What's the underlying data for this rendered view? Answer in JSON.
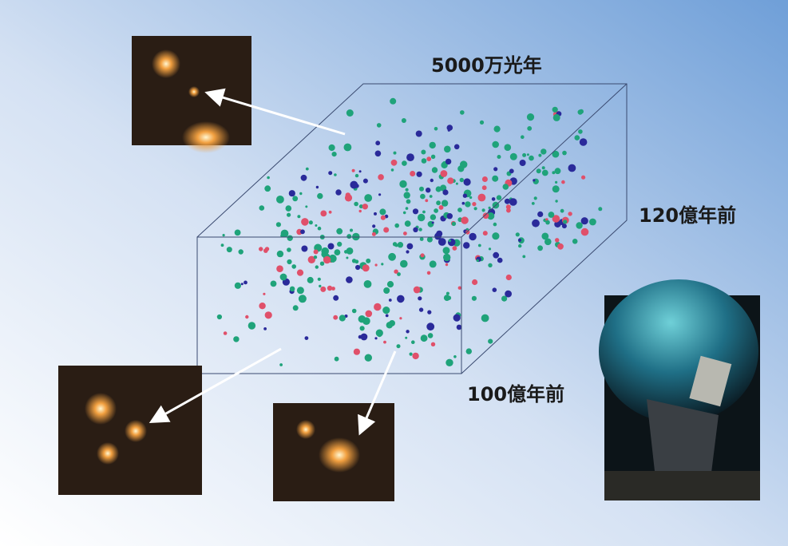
{
  "labels": {
    "width": "5000万光年",
    "far": "120億年前",
    "near": "100億年前"
  }
}
